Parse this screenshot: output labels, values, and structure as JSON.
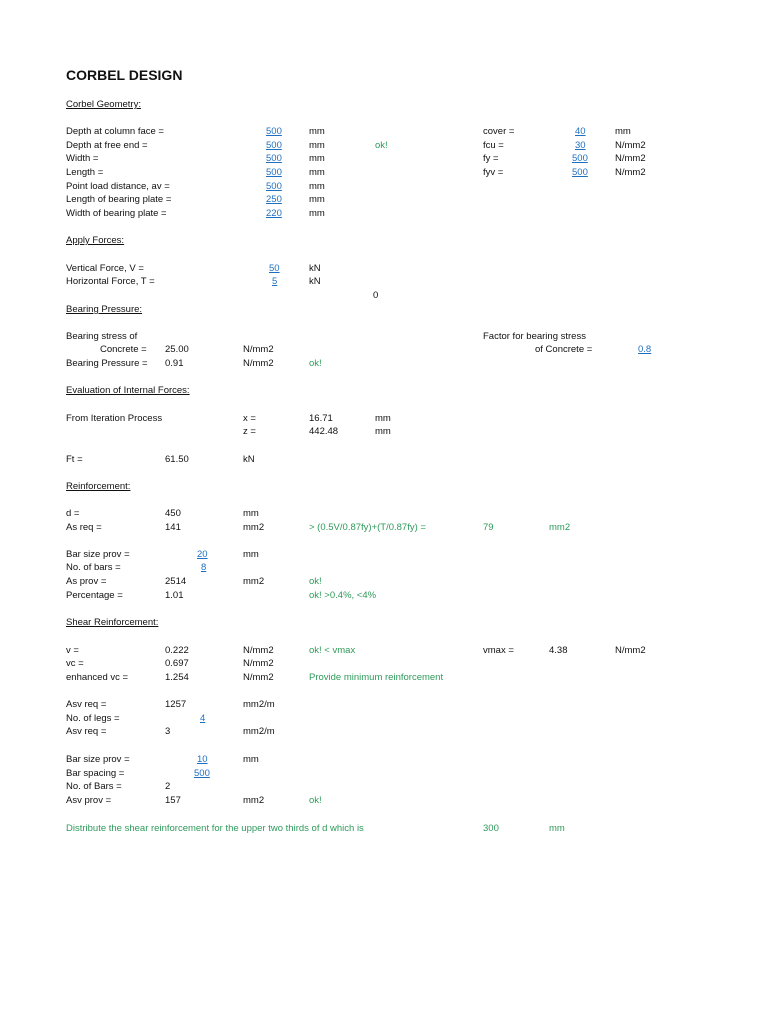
{
  "title": "CORBEL DESIGN",
  "colors": {
    "input": "#1f6fc0",
    "check": "#2e9a5a"
  },
  "geometry": {
    "heading": "Corbel Geometry:",
    "rows": [
      {
        "label": "Depth at column face =",
        "value": "500",
        "unit": "mm"
      },
      {
        "label": "Depth at free end =",
        "value": "500",
        "unit": "mm",
        "check": "ok!"
      },
      {
        "label": "Width =",
        "value": "500",
        "unit": "mm"
      },
      {
        "label": "Length =",
        "value": "500",
        "unit": "mm"
      },
      {
        "label": "Point load distance, av =",
        "value": "500",
        "unit": "mm"
      },
      {
        "label": "Length of bearing plate =",
        "value": "250",
        "unit": "mm"
      },
      {
        "label": "Width of bearing plate =",
        "value": "220",
        "unit": "mm"
      }
    ],
    "materials": [
      {
        "label": "cover =",
        "value": "40",
        "unit": "mm"
      },
      {
        "label": "fcu =",
        "value": "30",
        "unit": "N/mm2"
      },
      {
        "label": "fy =",
        "value": "500",
        "unit": "N/mm2"
      },
      {
        "label": "fyv =",
        "value": "500",
        "unit": "N/mm2"
      }
    ]
  },
  "forces": {
    "heading": "Apply Forces:",
    "rows": [
      {
        "label": "Vertical Force, V =",
        "value": "50",
        "unit": "kN"
      },
      {
        "label": "Horizontal Force, T =",
        "value": "5",
        "unit": "kN"
      }
    ],
    "stray": "0"
  },
  "bearing": {
    "heading": "Bearing Pressure:",
    "stress_label_1": "Bearing stress of",
    "stress_label_2": "Concrete =",
    "stress_value": "25.00",
    "stress_unit": "N/mm2",
    "pressure_label": "Bearing Pressure =",
    "pressure_value": "0.91",
    "pressure_unit": "N/mm2",
    "pressure_check": "ok!",
    "factor_label_1": "Factor for bearing stress",
    "factor_label_2": "of Concrete =",
    "factor_value": "0.8"
  },
  "internal": {
    "heading": "Evaluation of Internal Forces:",
    "iteration_label": "From Iteration Process",
    "x_label": "x =",
    "x_value": "16.71",
    "x_unit": "mm",
    "z_label": "z =",
    "z_value": "442.48",
    "z_unit": "mm",
    "ft_label": "Ft =",
    "ft_value": "61.50",
    "ft_unit": "kN"
  },
  "reinforcement": {
    "heading": "Reinforcement:",
    "d_label": "d =",
    "d_value": "450",
    "d_unit": "mm",
    "asreq_label": "As req =",
    "asreq_value": "141",
    "asreq_unit": "mm2",
    "asreq_check": "> (0.5V/0.87fy)+(T/0.87fy) =",
    "asreq_min": "79",
    "asreq_min_unit": "mm2",
    "barsize_label": "Bar size prov =",
    "barsize_value": "20",
    "barsize_unit": "mm",
    "nbars_label": "No. of bars =",
    "nbars_value": "8",
    "asprov_label": "As prov =",
    "asprov_value": "2514",
    "asprov_unit": "mm2",
    "asprov_check": "ok!",
    "pct_label": "Percentage =",
    "pct_value": "1.01",
    "pct_check": "ok! >0.4%, <4%"
  },
  "shear": {
    "heading": "Shear Reinforcement:",
    "v_label": "v =",
    "v_value": "0.222",
    "v_unit": "N/mm2",
    "v_check": "ok! < vmax",
    "vmax_label": "vmax =",
    "vmax_value": "4.38",
    "vmax_unit": "N/mm2",
    "vc_label": "vc =",
    "vc_value": "0.697",
    "vc_unit": "N/mm2",
    "evc_label": "enhanced vc =",
    "evc_value": "1.254",
    "evc_unit": "N/mm2",
    "evc_check": "Provide minimum reinforcement",
    "asvreq1_label": "Asv req =",
    "asvreq1_value": "1257",
    "asvreq1_unit": "mm2/m",
    "legs_label": "No. of legs =",
    "legs_value": "4",
    "asvreq2_label": "Asv req =",
    "asvreq2_value": "3",
    "asvreq2_unit": "mm2/m",
    "barsize_label": "Bar size prov =",
    "barsize_value": "10",
    "barsize_unit": "mm",
    "spacing_label": "Bar spacing =",
    "spacing_value": "500",
    "nbars_label": "No. of Bars =",
    "nbars_value": "2",
    "asvprov_label": "Asv prov =",
    "asvprov_value": "157",
    "asvprov_unit": "mm2",
    "asvprov_check": "ok!",
    "distribute_text": "Distribute the shear reinforcement for the upper two thirds of d which is",
    "distribute_value": "300",
    "distribute_unit": "mm"
  }
}
